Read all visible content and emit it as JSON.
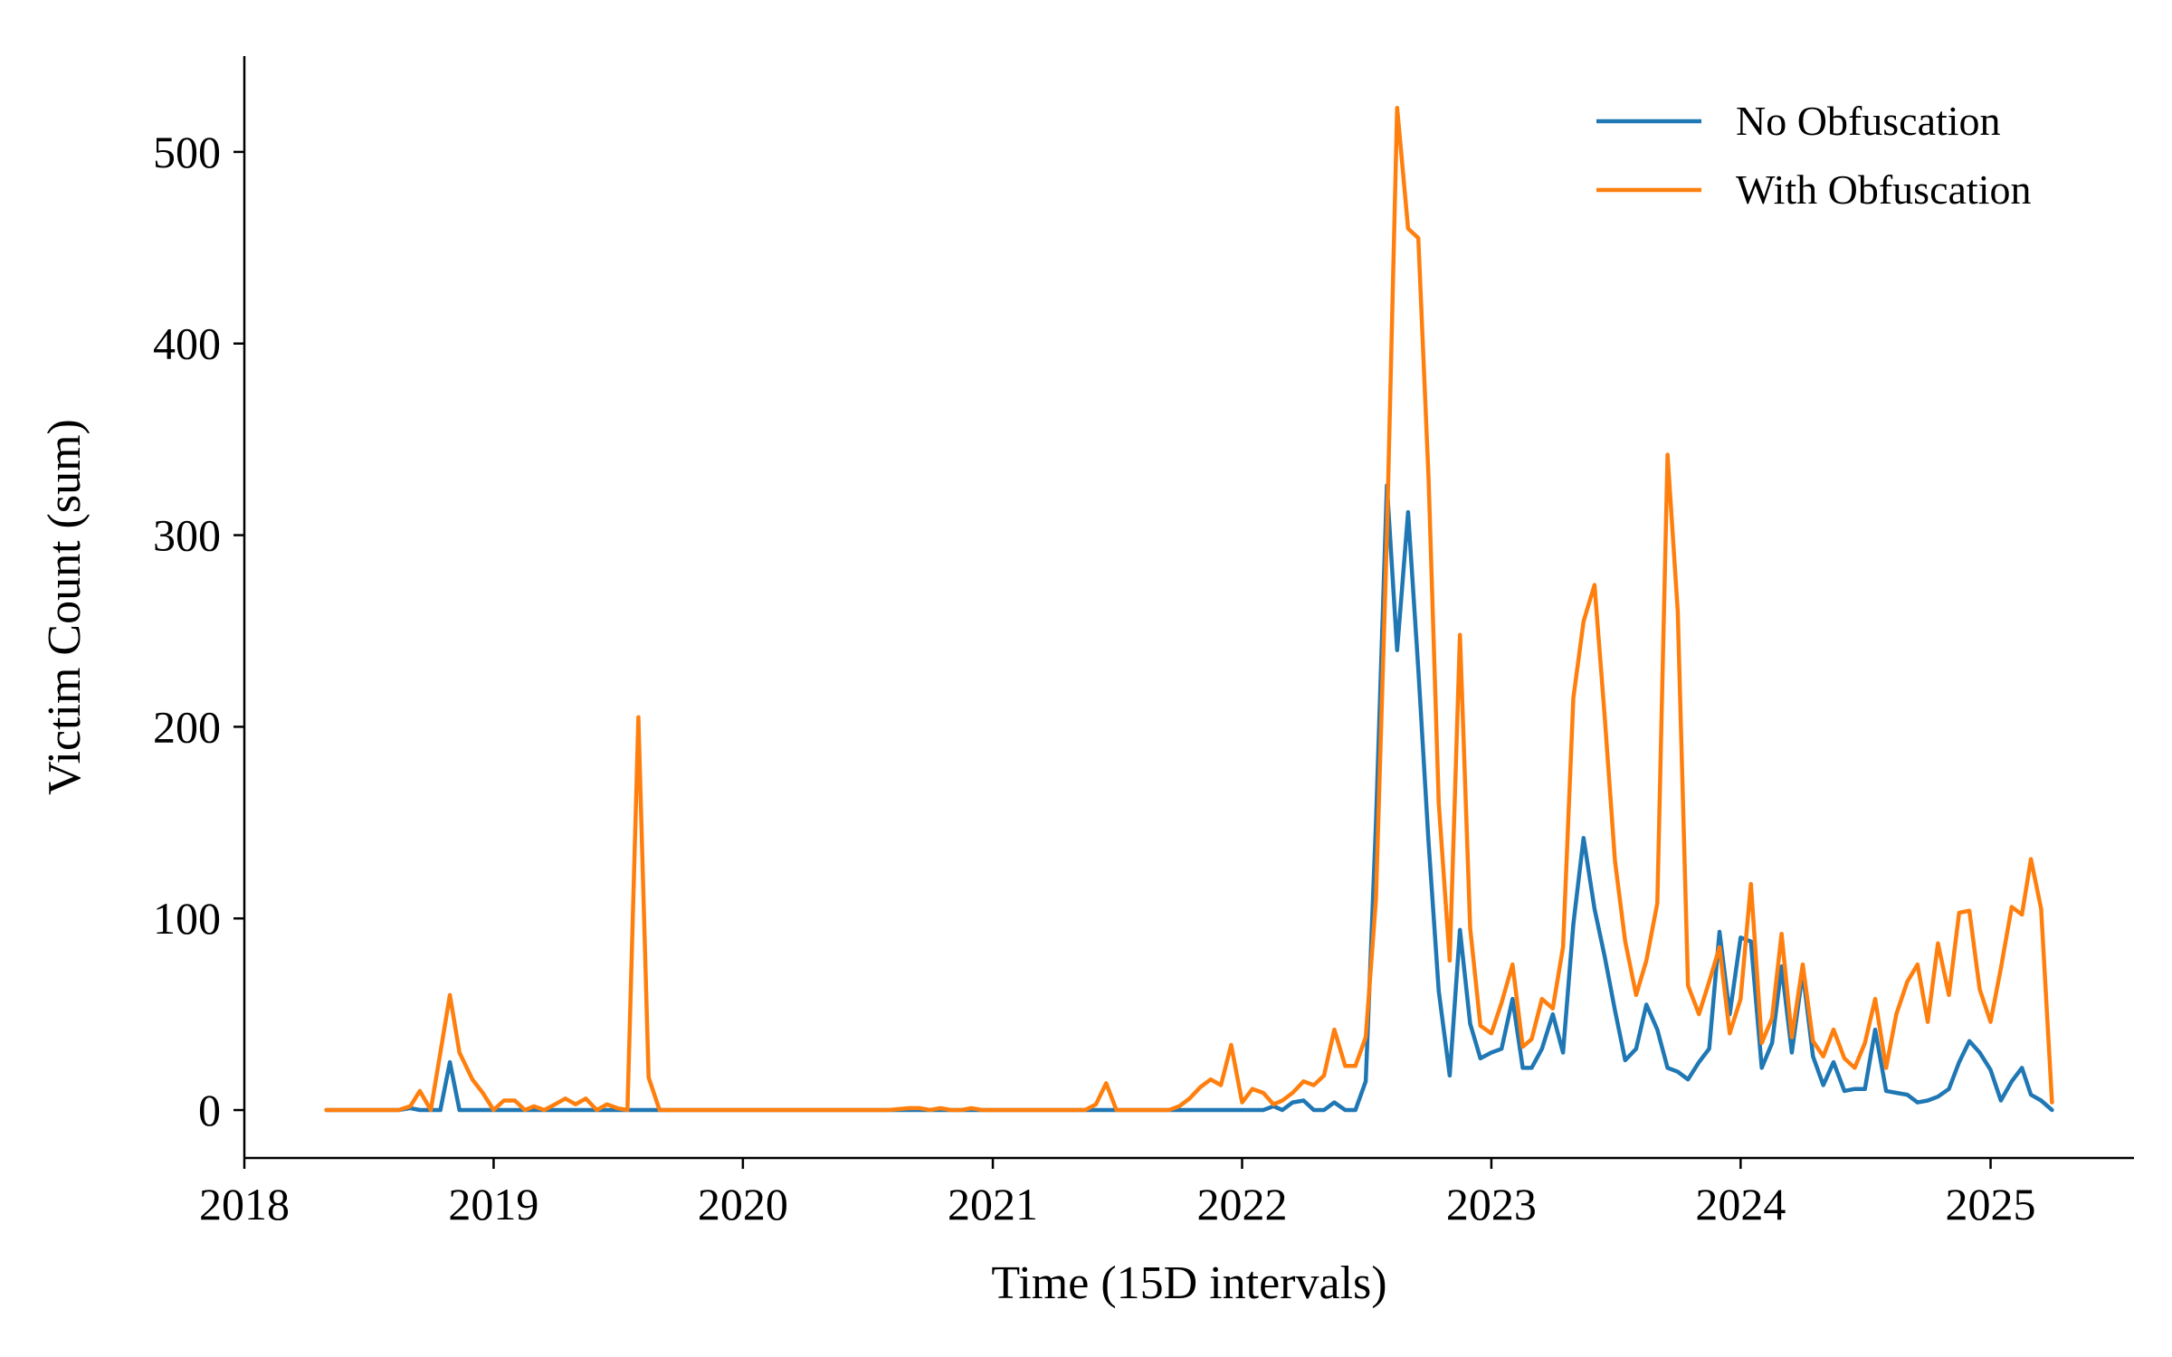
{
  "chart_data": {
    "type": "line",
    "title": "",
    "xlabel": "Time (15D intervals)",
    "ylabel": "Victim Count (sum)",
    "xlim": [
      "2018-01-01",
      "2025-07-30"
    ],
    "ylim": [
      -25,
      550
    ],
    "x_ticks": [
      {
        "date": "2018-01-01",
        "label": "2018"
      },
      {
        "date": "2019-01-01",
        "label": "2019"
      },
      {
        "date": "2020-01-01",
        "label": "2020"
      },
      {
        "date": "2021-01-01",
        "label": "2021"
      },
      {
        "date": "2022-01-01",
        "label": "2022"
      },
      {
        "date": "2023-01-01",
        "label": "2023"
      },
      {
        "date": "2024-01-01",
        "label": "2024"
      },
      {
        "date": "2025-01-01",
        "label": "2025"
      }
    ],
    "y_ticks": [
      0,
      100,
      200,
      300,
      400,
      500
    ],
    "grid": false,
    "legend_position": "top-right",
    "series": [
      {
        "name": "No Obfuscation",
        "color": "#1f77b4",
        "points": [
          [
            "2018-05-01",
            0
          ],
          [
            "2018-08-15",
            0
          ],
          [
            "2018-09-01",
            1
          ],
          [
            "2018-09-15",
            0
          ],
          [
            "2018-10-01",
            0
          ],
          [
            "2018-10-15",
            0
          ],
          [
            "2018-10-29",
            25
          ],
          [
            "2018-11-12",
            0
          ],
          [
            "2018-12-01",
            0
          ],
          [
            "2019-07-01",
            0
          ],
          [
            "2020-08-01",
            0
          ],
          [
            "2021-01-01",
            0
          ],
          [
            "2021-06-01",
            0
          ],
          [
            "2021-09-01",
            0
          ],
          [
            "2022-01-01",
            0
          ],
          [
            "2022-02-01",
            0
          ],
          [
            "2022-02-16",
            2
          ],
          [
            "2022-03-01",
            0
          ],
          [
            "2022-03-16",
            4
          ],
          [
            "2022-04-01",
            5
          ],
          [
            "2022-04-16",
            0
          ],
          [
            "2022-05-01",
            0
          ],
          [
            "2022-05-16",
            4
          ],
          [
            "2022-06-01",
            0
          ],
          [
            "2022-06-16",
            0
          ],
          [
            "2022-07-01",
            15
          ],
          [
            "2022-07-16",
            150
          ],
          [
            "2022-08-01",
            326
          ],
          [
            "2022-08-16",
            240
          ],
          [
            "2022-09-01",
            312
          ],
          [
            "2022-09-16",
            230
          ],
          [
            "2022-10-01",
            140
          ],
          [
            "2022-10-16",
            62
          ],
          [
            "2022-11-01",
            18
          ],
          [
            "2022-11-16",
            94
          ],
          [
            "2022-12-01",
            45
          ],
          [
            "2022-12-16",
            27
          ],
          [
            "2023-01-01",
            30
          ],
          [
            "2023-01-16",
            32
          ],
          [
            "2023-02-01",
            58
          ],
          [
            "2023-02-16",
            22
          ],
          [
            "2023-03-01",
            22
          ],
          [
            "2023-03-16",
            32
          ],
          [
            "2023-04-01",
            50
          ],
          [
            "2023-04-16",
            30
          ],
          [
            "2023-05-01",
            97
          ],
          [
            "2023-05-16",
            142
          ],
          [
            "2023-06-01",
            105
          ],
          [
            "2023-06-16",
            80
          ],
          [
            "2023-07-01",
            52
          ],
          [
            "2023-07-16",
            26
          ],
          [
            "2023-08-01",
            32
          ],
          [
            "2023-08-16",
            55
          ],
          [
            "2023-09-01",
            42
          ],
          [
            "2023-09-16",
            22
          ],
          [
            "2023-10-01",
            20
          ],
          [
            "2023-10-16",
            16
          ],
          [
            "2023-11-01",
            25
          ],
          [
            "2023-11-16",
            32
          ],
          [
            "2023-12-01",
            93
          ],
          [
            "2023-12-16",
            50
          ],
          [
            "2024-01-01",
            90
          ],
          [
            "2024-01-16",
            88
          ],
          [
            "2024-02-01",
            22
          ],
          [
            "2024-02-16",
            35
          ],
          [
            "2024-03-01",
            75
          ],
          [
            "2024-03-16",
            30
          ],
          [
            "2024-04-01",
            72
          ],
          [
            "2024-04-16",
            28
          ],
          [
            "2024-05-01",
            13
          ],
          [
            "2024-05-16",
            25
          ],
          [
            "2024-06-01",
            10
          ],
          [
            "2024-06-16",
            11
          ],
          [
            "2024-07-01",
            11
          ],
          [
            "2024-07-16",
            42
          ],
          [
            "2024-08-01",
            10
          ],
          [
            "2024-08-16",
            9
          ],
          [
            "2024-09-01",
            8
          ],
          [
            "2024-09-16",
            4
          ],
          [
            "2024-10-01",
            5
          ],
          [
            "2024-10-16",
            7
          ],
          [
            "2024-11-01",
            11
          ],
          [
            "2024-11-16",
            25
          ],
          [
            "2024-12-01",
            36
          ],
          [
            "2024-12-16",
            30
          ],
          [
            "2025-01-01",
            21
          ],
          [
            "2025-01-16",
            5
          ],
          [
            "2025-02-01",
            15
          ],
          [
            "2025-02-16",
            22
          ],
          [
            "2025-03-01",
            8
          ],
          [
            "2025-03-16",
            5
          ],
          [
            "2025-04-01",
            0
          ]
        ]
      },
      {
        "name": "With Obfuscation",
        "color": "#ff7f0e",
        "points": [
          [
            "2018-05-01",
            0
          ],
          [
            "2018-08-15",
            0
          ],
          [
            "2018-09-01",
            2
          ],
          [
            "2018-09-15",
            10
          ],
          [
            "2018-10-01",
            0
          ],
          [
            "2018-10-15",
            30
          ],
          [
            "2018-10-29",
            60
          ],
          [
            "2018-11-12",
            30
          ],
          [
            "2018-12-01",
            16
          ],
          [
            "2018-12-16",
            9
          ],
          [
            "2019-01-01",
            0
          ],
          [
            "2019-01-16",
            5
          ],
          [
            "2019-02-01",
            5
          ],
          [
            "2019-02-16",
            0
          ],
          [
            "2019-03-01",
            2
          ],
          [
            "2019-03-16",
            0
          ],
          [
            "2019-04-01",
            3
          ],
          [
            "2019-04-16",
            6
          ],
          [
            "2019-05-01",
            3
          ],
          [
            "2019-05-16",
            6
          ],
          [
            "2019-06-01",
            0
          ],
          [
            "2019-06-16",
            3
          ],
          [
            "2019-07-01",
            1
          ],
          [
            "2019-07-16",
            0
          ],
          [
            "2019-08-01",
            205
          ],
          [
            "2019-08-16",
            17
          ],
          [
            "2019-09-01",
            0
          ],
          [
            "2019-10-01",
            0
          ],
          [
            "2020-01-01",
            0
          ],
          [
            "2020-08-01",
            0
          ],
          [
            "2020-09-01",
            1
          ],
          [
            "2020-09-16",
            1
          ],
          [
            "2020-10-01",
            0
          ],
          [
            "2020-10-16",
            1
          ],
          [
            "2020-11-01",
            0
          ],
          [
            "2020-11-16",
            0
          ],
          [
            "2020-12-01",
            1
          ],
          [
            "2020-12-16",
            0
          ],
          [
            "2021-01-01",
            0
          ],
          [
            "2021-05-01",
            0
          ],
          [
            "2021-05-16",
            0
          ],
          [
            "2021-06-01",
            3
          ],
          [
            "2021-06-16",
            14
          ],
          [
            "2021-07-01",
            0
          ],
          [
            "2021-07-16",
            0
          ],
          [
            "2021-09-01",
            0
          ],
          [
            "2021-09-16",
            0
          ],
          [
            "2021-10-01",
            2
          ],
          [
            "2021-10-16",
            6
          ],
          [
            "2021-11-01",
            12
          ],
          [
            "2021-11-16",
            16
          ],
          [
            "2021-12-01",
            13
          ],
          [
            "2021-12-16",
            34
          ],
          [
            "2022-01-01",
            4
          ],
          [
            "2022-01-16",
            11
          ],
          [
            "2022-02-01",
            9
          ],
          [
            "2022-02-16",
            3
          ],
          [
            "2022-03-01",
            5
          ],
          [
            "2022-03-16",
            9
          ],
          [
            "2022-04-01",
            15
          ],
          [
            "2022-04-16",
            13
          ],
          [
            "2022-05-01",
            18
          ],
          [
            "2022-05-16",
            42
          ],
          [
            "2022-06-01",
            23
          ],
          [
            "2022-06-16",
            23
          ],
          [
            "2022-07-01",
            38
          ],
          [
            "2022-07-16",
            110
          ],
          [
            "2022-08-01",
            300
          ],
          [
            "2022-08-16",
            523
          ],
          [
            "2022-09-01",
            460
          ],
          [
            "2022-09-16",
            455
          ],
          [
            "2022-10-01",
            330
          ],
          [
            "2022-10-16",
            160
          ],
          [
            "2022-11-01",
            78
          ],
          [
            "2022-11-16",
            248
          ],
          [
            "2022-12-01",
            95
          ],
          [
            "2022-12-16",
            44
          ],
          [
            "2023-01-01",
            40
          ],
          [
            "2023-01-16",
            56
          ],
          [
            "2023-02-01",
            76
          ],
          [
            "2023-02-16",
            33
          ],
          [
            "2023-03-01",
            37
          ],
          [
            "2023-03-16",
            58
          ],
          [
            "2023-04-01",
            53
          ],
          [
            "2023-04-16",
            85
          ],
          [
            "2023-05-01",
            215
          ],
          [
            "2023-05-16",
            255
          ],
          [
            "2023-06-01",
            274
          ],
          [
            "2023-06-16",
            205
          ],
          [
            "2023-07-01",
            130
          ],
          [
            "2023-07-16",
            88
          ],
          [
            "2023-08-01",
            60
          ],
          [
            "2023-08-16",
            78
          ],
          [
            "2023-09-01",
            108
          ],
          [
            "2023-09-16",
            342
          ],
          [
            "2023-10-01",
            260
          ],
          [
            "2023-10-16",
            65
          ],
          [
            "2023-11-01",
            50
          ],
          [
            "2023-11-16",
            67
          ],
          [
            "2023-12-01",
            85
          ],
          [
            "2023-12-16",
            40
          ],
          [
            "2024-01-01",
            58
          ],
          [
            "2024-01-16",
            118
          ],
          [
            "2024-02-01",
            35
          ],
          [
            "2024-02-16",
            48
          ],
          [
            "2024-03-01",
            92
          ],
          [
            "2024-03-16",
            38
          ],
          [
            "2024-04-01",
            76
          ],
          [
            "2024-04-16",
            36
          ],
          [
            "2024-05-01",
            28
          ],
          [
            "2024-05-16",
            42
          ],
          [
            "2024-06-01",
            27
          ],
          [
            "2024-06-16",
            22
          ],
          [
            "2024-07-01",
            35
          ],
          [
            "2024-07-16",
            58
          ],
          [
            "2024-08-01",
            22
          ],
          [
            "2024-08-16",
            50
          ],
          [
            "2024-09-01",
            67
          ],
          [
            "2024-09-16",
            76
          ],
          [
            "2024-10-01",
            46
          ],
          [
            "2024-10-16",
            87
          ],
          [
            "2024-11-01",
            60
          ],
          [
            "2024-11-16",
            103
          ],
          [
            "2024-12-01",
            104
          ],
          [
            "2024-12-16",
            63
          ],
          [
            "2025-01-01",
            46
          ],
          [
            "2025-01-16",
            74
          ],
          [
            "2025-02-01",
            106
          ],
          [
            "2025-02-16",
            102
          ],
          [
            "2025-03-01",
            131
          ],
          [
            "2025-03-16",
            105
          ],
          [
            "2025-04-01",
            4
          ]
        ]
      }
    ]
  }
}
